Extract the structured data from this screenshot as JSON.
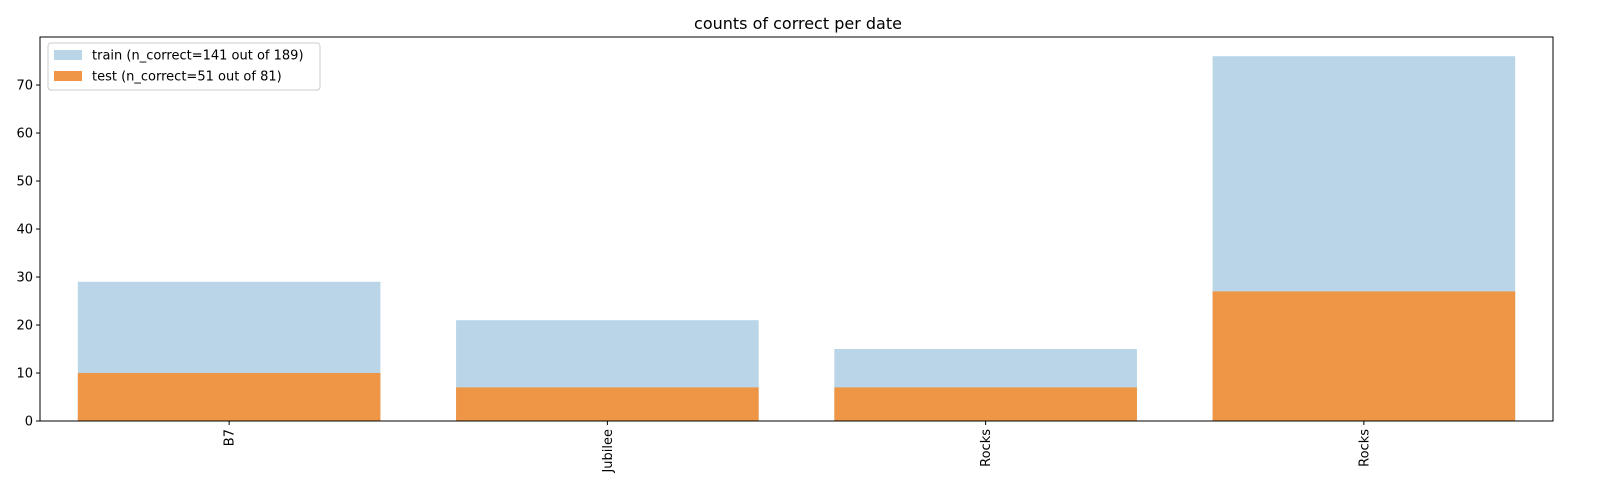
{
  "chart_data": {
    "type": "bar",
    "title": "counts of correct per date",
    "xlabel": "",
    "ylabel": "",
    "categories": [
      "B7",
      "Jubilee",
      "Rocks",
      "Rocks"
    ],
    "series": [
      {
        "name": "train (n_correct=141 out of 189)",
        "values": [
          29,
          21,
          15,
          76
        ],
        "color": "#b9d5e7"
      },
      {
        "name": "test (n_correct=51 out of 81)",
        "values": [
          10,
          7,
          7,
          27
        ],
        "color": "#ee9645"
      }
    ],
    "ylim": [
      0,
      80
    ],
    "yticks": [
      0,
      10,
      20,
      30,
      40,
      50,
      60,
      70
    ],
    "legend_position": "top-left",
    "grid": false
  }
}
